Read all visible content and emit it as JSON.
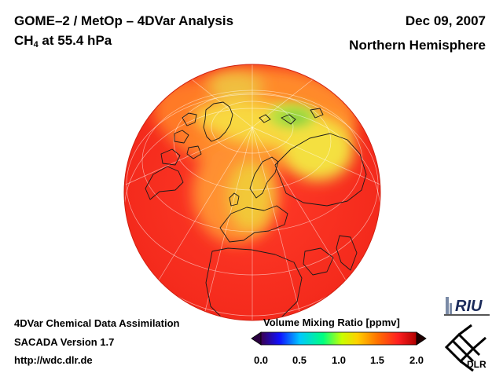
{
  "header": {
    "title_line1": "GOME–2 / MetOp – 4DVar Analysis",
    "species_main": "CH",
    "species_sub": "4",
    "species_rest": " at 55.4 hPa",
    "date": "Dec 09, 2007",
    "region": "Northern Hemisphere"
  },
  "footer": {
    "line1": "4DVar Chemical Data Assimilation",
    "line2": "SACADA Version 1.7",
    "line3": "http://wdc.dlr.de"
  },
  "colorbar": {
    "title": "Volume Mixing Ratio [ppmv]",
    "ticks": [
      "0.0",
      "0.5",
      "1.0",
      "1.5",
      "2.0"
    ],
    "min": 0.0,
    "max": 2.0,
    "colors": [
      "#3a0050",
      "#1010ff",
      "#00c8ff",
      "#00ff80",
      "#c8ff00",
      "#ffd000",
      "#ff7000",
      "#ff2020",
      "#b00000"
    ]
  },
  "map": {
    "projection": "orthographic",
    "background_value_ppmv": 1.65,
    "features": [
      {
        "name": "north-pole-yellow-band",
        "value_ppmv": 1.45
      },
      {
        "name": "siberia-green-patch",
        "value_ppmv": 1.25
      },
      {
        "name": "europe-yellow-tongue",
        "value_ppmv": 1.45
      }
    ]
  },
  "logos": {
    "riu": "RIU",
    "dlr": "DLR"
  }
}
